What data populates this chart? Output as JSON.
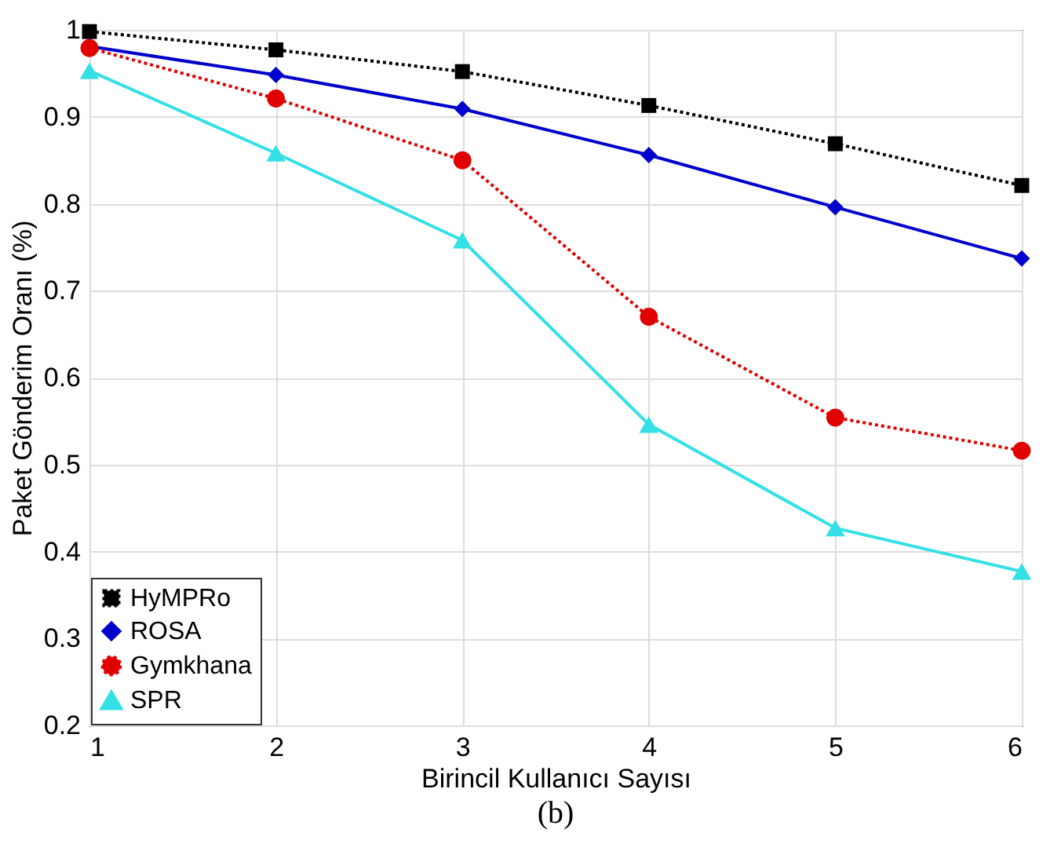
{
  "chart_data": {
    "type": "line",
    "xlabel": "Birincil Kullanıcı Sayısı",
    "ylabel": "Paket Gönderim Oranı (%)",
    "annotations": [
      "(b)"
    ],
    "x": [
      1,
      2,
      3,
      4,
      5,
      6
    ],
    "series": [
      {
        "name": "HyMPRo",
        "color": "#000000",
        "marker": "square",
        "line_style": "dotted",
        "values": [
          0.998,
          0.977,
          0.952,
          0.913,
          0.869,
          0.821
        ]
      },
      {
        "name": "ROSA",
        "color": "#0000cc",
        "marker": "diamond",
        "line_style": "solid",
        "values": [
          0.981,
          0.948,
          0.909,
          0.856,
          0.796,
          0.737
        ]
      },
      {
        "name": "Gymkhana",
        "color": "#e00000",
        "marker": "circle",
        "line_style": "dotted",
        "values": [
          0.979,
          0.921,
          0.85,
          0.67,
          0.554,
          0.516
        ]
      },
      {
        "name": "SPR",
        "color": "#33e0e6",
        "marker": "triangle",
        "line_style": "solid",
        "values": [
          0.953,
          0.858,
          0.758,
          0.546,
          0.427,
          0.377
        ]
      }
    ],
    "xlim": [
      1,
      6
    ],
    "xticks": [
      1,
      2,
      3,
      4,
      5,
      6
    ],
    "ylim": [
      0.2,
      1
    ],
    "yticks": [
      0.2,
      0.3,
      0.4,
      0.5,
      0.6,
      0.7,
      0.8,
      0.9,
      1
    ],
    "grid": true,
    "legend": "bottom left"
  }
}
